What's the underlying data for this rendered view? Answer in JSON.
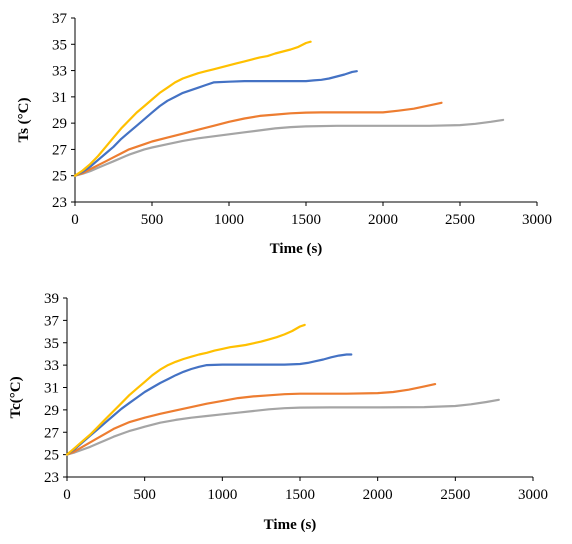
{
  "chart_data": [
    {
      "type": "line",
      "xlabel": "Time (s)",
      "ylabel": "Ts (°C)",
      "xlim": [
        0,
        3000
      ],
      "ylim": [
        23,
        37
      ],
      "xticks": [
        0,
        500,
        1000,
        1500,
        2000,
        2500,
        3000
      ],
      "yticks": [
        23,
        25,
        27,
        29,
        31,
        33,
        35,
        37
      ],
      "grid": false,
      "series": [
        {
          "color": "#FFC000",
          "x": [
            0,
            50,
            100,
            150,
            200,
            250,
            300,
            350,
            400,
            450,
            500,
            550,
            600,
            650,
            700,
            750,
            800,
            850,
            900,
            950,
            1000,
            1050,
            1100,
            1150,
            1200,
            1250,
            1300,
            1350,
            1400,
            1450,
            1500,
            1530
          ],
          "y": [
            25,
            25.4,
            25.9,
            26.5,
            27.2,
            27.9,
            28.6,
            29.2,
            29.8,
            30.3,
            30.8,
            31.3,
            31.7,
            32.1,
            32.4,
            32.6,
            32.8,
            32.95,
            33.1,
            33.25,
            33.4,
            33.55,
            33.7,
            33.85,
            34,
            34.1,
            34.3,
            34.45,
            34.6,
            34.8,
            35.1,
            35.2
          ]
        },
        {
          "color": "#4472C4",
          "x": [
            0,
            50,
            100,
            150,
            200,
            250,
            300,
            350,
            400,
            450,
            500,
            550,
            600,
            650,
            700,
            750,
            800,
            850,
            900,
            1000,
            1100,
            1200,
            1300,
            1400,
            1500,
            1550,
            1600,
            1650,
            1700,
            1750,
            1800,
            1830
          ],
          "y": [
            25,
            25.3,
            25.7,
            26.2,
            26.7,
            27.2,
            27.8,
            28.3,
            28.8,
            29.3,
            29.8,
            30.3,
            30.7,
            31,
            31.3,
            31.5,
            31.7,
            31.9,
            32.1,
            32.15,
            32.2,
            32.2,
            32.2,
            32.2,
            32.2,
            32.25,
            32.3,
            32.4,
            32.55,
            32.7,
            32.9,
            32.95
          ]
        },
        {
          "color": "#ED7D31",
          "x": [
            0,
            50,
            100,
            150,
            200,
            250,
            300,
            350,
            400,
            450,
            500,
            600,
            700,
            800,
            900,
            1000,
            1100,
            1200,
            1300,
            1400,
            1500,
            1600,
            1800,
            2000,
            2100,
            2200,
            2300,
            2380
          ],
          "y": [
            25,
            25.2,
            25.5,
            25.8,
            26.1,
            26.4,
            26.7,
            27,
            27.2,
            27.4,
            27.6,
            27.9,
            28.2,
            28.5,
            28.8,
            29.1,
            29.35,
            29.55,
            29.65,
            29.75,
            29.8,
            29.82,
            29.82,
            29.82,
            29.95,
            30.1,
            30.35,
            30.55
          ]
        },
        {
          "color": "#A5A5A5",
          "x": [
            0,
            50,
            100,
            150,
            200,
            250,
            300,
            350,
            400,
            450,
            500,
            600,
            700,
            800,
            900,
            1000,
            1100,
            1200,
            1300,
            1400,
            1500,
            1700,
            2000,
            2300,
            2500,
            2600,
            2700,
            2780
          ],
          "y": [
            25,
            25.15,
            25.35,
            25.6,
            25.85,
            26.1,
            26.35,
            26.6,
            26.8,
            27,
            27.15,
            27.4,
            27.65,
            27.85,
            28,
            28.15,
            28.3,
            28.45,
            28.6,
            28.7,
            28.75,
            28.8,
            28.8,
            28.8,
            28.85,
            28.95,
            29.1,
            29.25
          ]
        }
      ]
    },
    {
      "type": "line",
      "xlabel": "Time (s)",
      "ylabel": "Tc(°C)",
      "xlim": [
        0,
        3000
      ],
      "ylim": [
        23,
        39
      ],
      "xticks": [
        0,
        500,
        1000,
        1500,
        2000,
        2500,
        3000
      ],
      "yticks": [
        23,
        25,
        27,
        29,
        31,
        33,
        35,
        37,
        39
      ],
      "grid": false,
      "series": [
        {
          "color": "#FFC000",
          "x": [
            0,
            50,
            100,
            150,
            200,
            250,
            300,
            350,
            400,
            450,
            500,
            550,
            600,
            650,
            700,
            750,
            800,
            850,
            900,
            950,
            1000,
            1050,
            1100,
            1150,
            1200,
            1250,
            1300,
            1350,
            1400,
            1450,
            1500,
            1530
          ],
          "y": [
            25,
            25.6,
            26.2,
            26.8,
            27.5,
            28.2,
            28.9,
            29.6,
            30.3,
            30.9,
            31.5,
            32.1,
            32.6,
            33,
            33.3,
            33.55,
            33.75,
            33.95,
            34.1,
            34.3,
            34.45,
            34.6,
            34.7,
            34.8,
            34.95,
            35.1,
            35.3,
            35.5,
            35.75,
            36.05,
            36.45,
            36.6
          ]
        },
        {
          "color": "#4472C4",
          "x": [
            0,
            50,
            100,
            150,
            200,
            250,
            300,
            350,
            400,
            450,
            500,
            550,
            600,
            650,
            700,
            750,
            800,
            850,
            900,
            1000,
            1100,
            1200,
            1300,
            1400,
            1500,
            1550,
            1600,
            1650,
            1700,
            1750,
            1800,
            1830
          ],
          "y": [
            25,
            25.5,
            26.1,
            26.7,
            27.3,
            27.9,
            28.5,
            29.1,
            29.6,
            30.1,
            30.6,
            31,
            31.4,
            31.75,
            32.1,
            32.4,
            32.65,
            32.85,
            33,
            33.05,
            33.05,
            33.05,
            33.05,
            33.05,
            33.1,
            33.2,
            33.35,
            33.5,
            33.7,
            33.85,
            33.95,
            33.95
          ]
        },
        {
          "color": "#ED7D31",
          "x": [
            0,
            50,
            100,
            150,
            200,
            250,
            300,
            350,
            400,
            450,
            500,
            600,
            700,
            800,
            900,
            1000,
            1100,
            1200,
            1300,
            1400,
            1500,
            1600,
            1800,
            2000,
            2100,
            2200,
            2300,
            2370
          ],
          "y": [
            25,
            25.3,
            25.7,
            26.1,
            26.5,
            26.9,
            27.3,
            27.6,
            27.9,
            28.1,
            28.3,
            28.65,
            28.95,
            29.25,
            29.55,
            29.8,
            30.05,
            30.2,
            30.3,
            30.4,
            30.45,
            30.45,
            30.45,
            30.5,
            30.6,
            30.8,
            31.1,
            31.3
          ]
        },
        {
          "color": "#A5A5A5",
          "x": [
            0,
            50,
            100,
            150,
            200,
            250,
            300,
            350,
            400,
            450,
            500,
            600,
            700,
            800,
            900,
            1000,
            1100,
            1200,
            1300,
            1400,
            1500,
            1700,
            2000,
            2300,
            2500,
            2600,
            2700,
            2780
          ],
          "y": [
            25,
            25.2,
            25.45,
            25.7,
            26,
            26.3,
            26.6,
            26.85,
            27.1,
            27.3,
            27.5,
            27.85,
            28.1,
            28.3,
            28.45,
            28.6,
            28.75,
            28.9,
            29.05,
            29.15,
            29.2,
            29.22,
            29.22,
            29.25,
            29.35,
            29.5,
            29.7,
            29.9
          ]
        }
      ]
    }
  ]
}
